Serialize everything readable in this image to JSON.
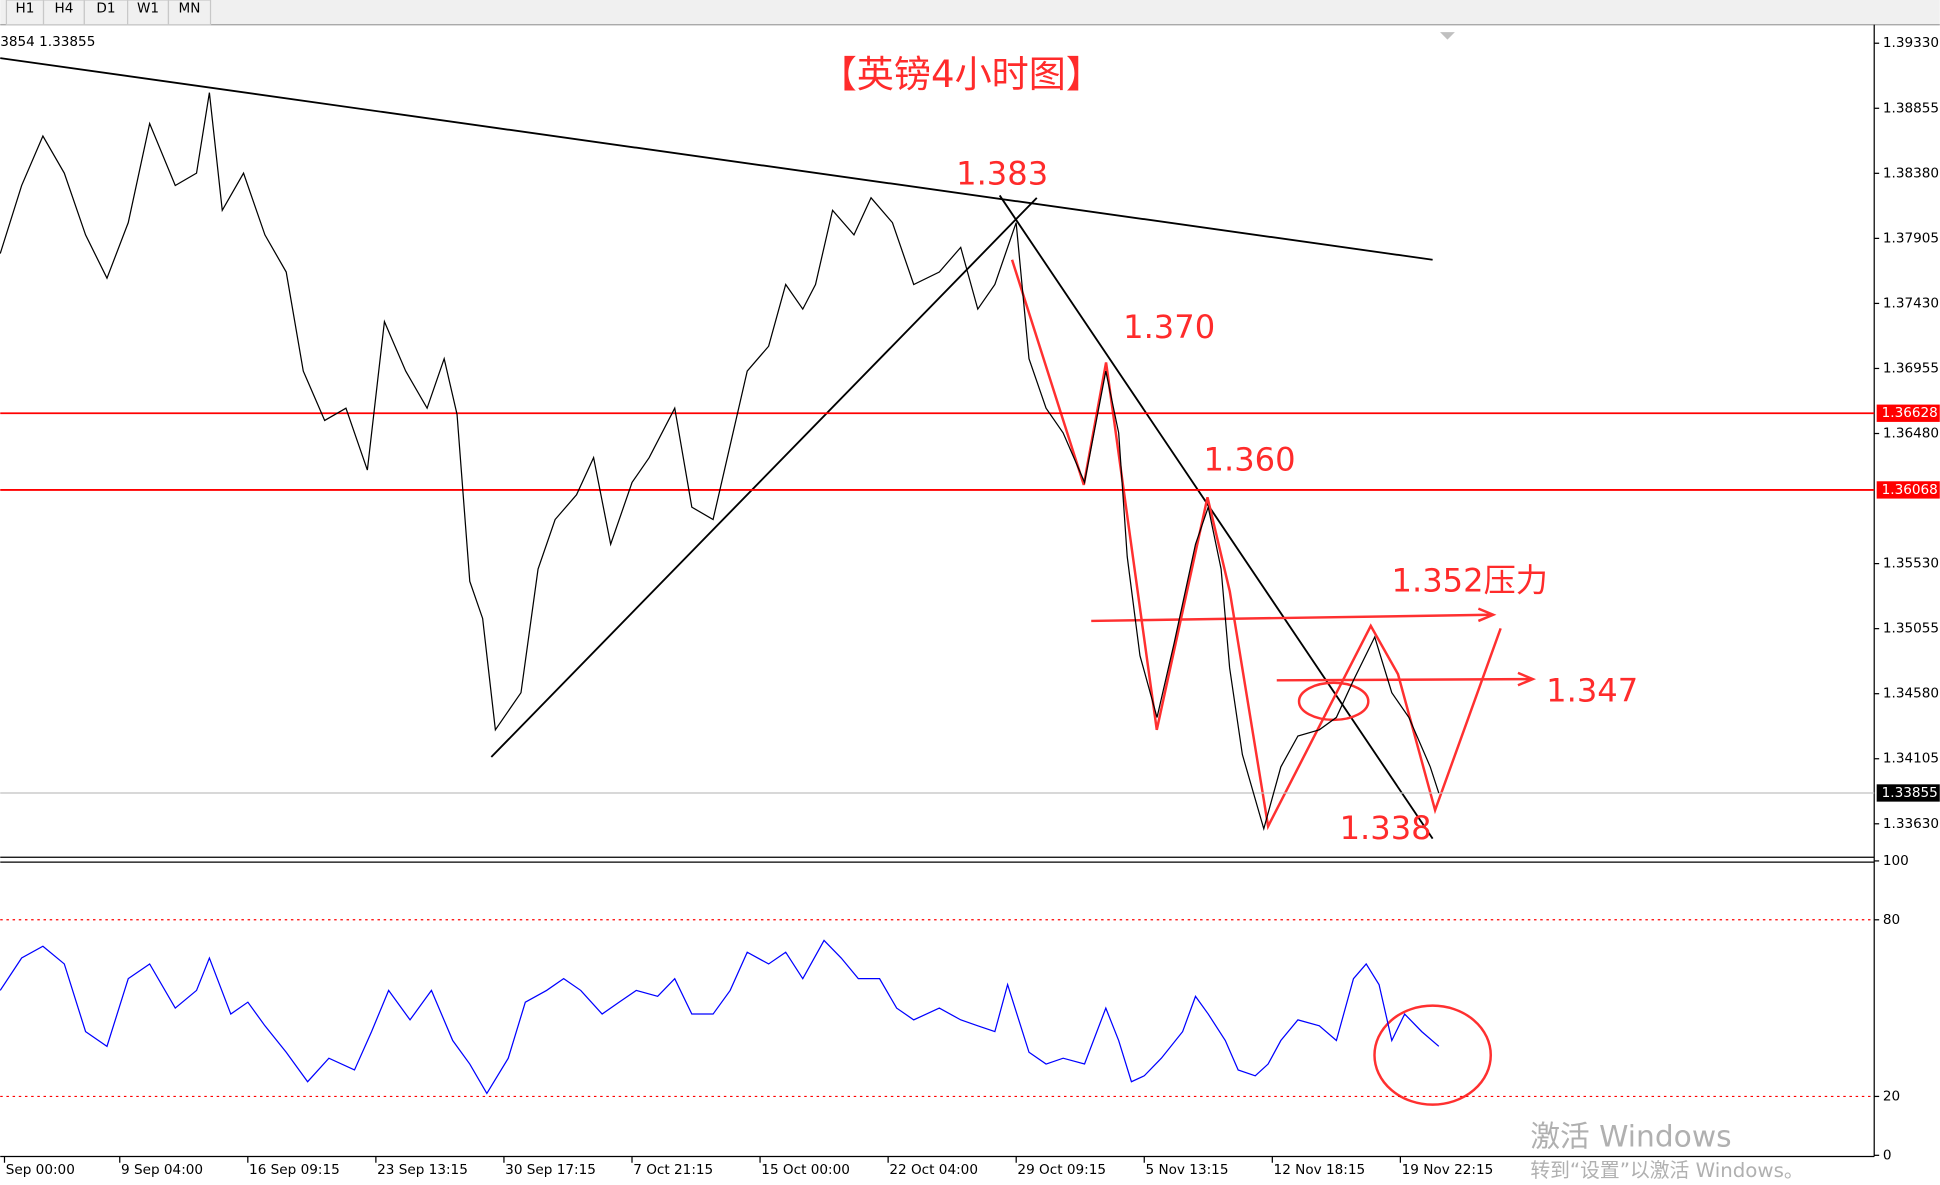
{
  "toolbar": {
    "timeframes": [
      "H1",
      "H4",
      "D1",
      "W1",
      "MN"
    ]
  },
  "header": "3854 1.33855",
  "chart_data": [
    {
      "type": "line",
      "title": "【英镑4小时图】",
      "color": "#000000",
      "x": [
        0,
        5,
        10,
        15,
        20,
        25,
        30,
        35,
        41,
        46,
        49,
        52,
        57,
        62,
        67,
        71,
        76,
        81,
        86,
        90,
        95,
        100,
        104,
        107,
        110,
        113,
        116,
        122,
        126,
        130,
        135,
        139,
        143,
        148,
        152,
        158,
        162,
        167,
        171,
        175,
        180,
        184,
        188,
        191,
        195,
        200,
        204,
        209,
        214,
        220,
        225,
        229,
        233,
        238,
        241,
        245,
        249,
        254,
        259,
        262,
        264,
        267,
        271,
        275,
        280,
        283,
        286,
        288,
        291,
        296,
        300,
        304,
        309,
        313,
        317,
        322,
        326,
        330,
        335,
        337
      ],
      "values": [
        1.37794,
        1.38291,
        1.38652,
        1.38381,
        1.3793,
        1.37614,
        1.3802,
        1.38743,
        1.38291,
        1.38381,
        1.38969,
        1.3811,
        1.38381,
        1.3793,
        1.37659,
        1.36936,
        1.36575,
        1.36665,
        1.36213,
        1.37297,
        1.36936,
        1.36665,
        1.37026,
        1.3662,
        1.354,
        1.35129,
        1.34316,
        1.34587,
        1.35491,
        1.35852,
        1.36033,
        1.36304,
        1.35671,
        1.36123,
        1.36304,
        1.36665,
        1.35942,
        1.35852,
        1.36394,
        1.36936,
        1.37117,
        1.37568,
        1.37388,
        1.37568,
        1.3811,
        1.3793,
        1.38201,
        1.3802,
        1.37568,
        1.37659,
        1.37839,
        1.37388,
        1.37568,
        1.3802,
        1.37026,
        1.36665,
        1.36484,
        1.36123,
        1.36936,
        1.36484,
        1.35581,
        1.34858,
        1.34407,
        1.34949,
        1.35671,
        1.35942,
        1.35491,
        1.34768,
        1.34136,
        1.33594,
        1.34045,
        1.34271,
        1.34316,
        1.34407,
        1.34678,
        1.34994,
        1.34587,
        1.34407,
        1.34045,
        1.33855
      ],
      "xlim": [
        0,
        439
      ],
      "ylim": [
        1.33386,
        1.39465
      ],
      "yticks": [
        {
          "value": 1.3933,
          "label": "1.39330"
        },
        1.38855,
        {
          "value": 1.3838,
          "label": "1.38380"
        },
        1.37905,
        {
          "value": 1.3743,
          "label": "1.37430"
        },
        1.36955,
        {
          "value": 1.3648,
          "label": "1.36480"
        },
        {
          "value": 1.3553,
          "label": "1.35530"
        },
        1.35055,
        {
          "value": 1.3458,
          "label": "1.34580"
        },
        1.34105,
        {
          "value": 1.3363,
          "label": "1.33630"
        }
      ],
      "price_lines": [
        {
          "value": 1.36628,
          "color": "#ff0000"
        },
        {
          "value": 1.36068,
          "color": "#ff0000"
        }
      ],
      "current_price": 1.33855,
      "annotations": [
        "1.383",
        "1.370",
        "1.360",
        "1.352压力",
        "1.347",
        "1.338"
      ]
    },
    {
      "type": "line",
      "color": "#0000ff",
      "x": [
        0,
        5,
        10,
        15,
        20,
        25,
        30,
        35,
        41,
        46,
        49,
        54,
        58,
        62,
        67,
        72,
        77,
        83,
        87,
        91,
        96,
        101,
        106,
        110,
        114,
        119,
        123,
        128,
        132,
        136,
        141,
        145,
        149,
        154,
        158,
        162,
        167,
        171,
        175,
        180,
        184,
        188,
        193,
        197,
        201,
        206,
        210,
        214,
        220,
        225,
        229,
        233,
        236,
        241,
        245,
        249,
        254,
        259,
        262,
        265,
        268,
        272,
        277,
        280,
        283,
        287,
        290,
        294,
        297,
        300,
        304,
        309,
        313,
        317,
        320,
        323,
        326,
        329,
        333,
        337
      ],
      "values": [
        56,
        67,
        71,
        65,
        42,
        37,
        60,
        65,
        50,
        56,
        67,
        48,
        52,
        44,
        35,
        25,
        33,
        29,
        42,
        56,
        46,
        56,
        39,
        31,
        21,
        33,
        52,
        56,
        60,
        56,
        48,
        52,
        56,
        54,
        60,
        48,
        48,
        56,
        69,
        65,
        69,
        60,
        73,
        67,
        60,
        60,
        50,
        46,
        50,
        46,
        44,
        42,
        58,
        35,
        31,
        33,
        31,
        50,
        39,
        25,
        27,
        33,
        42,
        54,
        48,
        39,
        29,
        27,
        31,
        39,
        46,
        44,
        39,
        60,
        65,
        58,
        39,
        48,
        42,
        37
      ],
      "xlim": [
        0,
        439
      ],
      "ylim": [
        0,
        100
      ],
      "yticks": [
        0,
        20,
        80,
        100
      ],
      "levels": [
        20,
        80
      ],
      "level_color": "#ff0000",
      "xticks": [
        {
          "value": 1,
          "label": "Sep 00:00"
        },
        {
          "value": 28,
          "label": "9 Sep 04:00"
        },
        {
          "value": 58,
          "label": "16 Sep 09:15"
        },
        {
          "value": 88,
          "label": "23 Sep 13:15"
        },
        {
          "value": 118,
          "label": "30 Sep 17:15"
        },
        {
          "value": 148,
          "label": "7 Oct 21:15"
        },
        {
          "value": 178,
          "label": "15 Oct 00:00"
        },
        {
          "value": 208,
          "label": "22 Oct 04:00"
        },
        {
          "value": 238,
          "label": "29 Oct 09:15"
        },
        {
          "value": 268,
          "label": "5 Nov 13:15"
        },
        {
          "value": 298,
          "label": "12 Nov 18:15"
        },
        {
          "value": 328,
          "label": "19 Nov 22:15"
        }
      ]
    }
  ],
  "watermark": {
    "title": "激活 Windows",
    "subtitle": "转到“设置”以激活 Windows。"
  }
}
